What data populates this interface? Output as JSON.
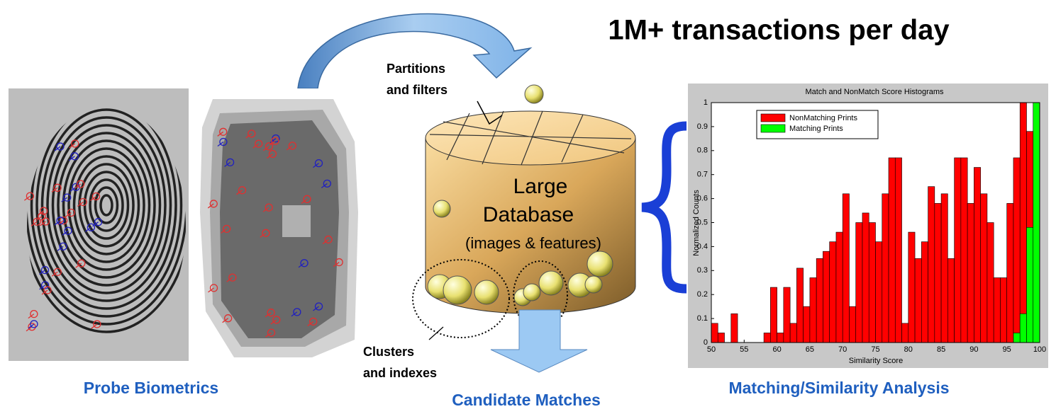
{
  "title": "1M+ transactions per day",
  "labels": {
    "partitions": [
      "Partitions",
      "and filters"
    ],
    "clusters": [
      "Clusters",
      "and indexes"
    ]
  },
  "database": [
    "Large",
    "Database",
    "(images & features)"
  ],
  "captions": {
    "probe": "Probe Biometrics",
    "candidates": "Candidate Matches",
    "analysis": "Matching/Similarity Analysis"
  },
  "chart_data": {
    "type": "histogram",
    "title": "Match and NonMatch Score Histograms",
    "x_label": "Similarity Score",
    "y_label": "Normalized Counts",
    "bins": [
      50,
      51,
      52,
      53,
      54,
      55,
      56,
      57,
      58,
      59,
      60,
      61,
      62,
      63,
      64,
      65,
      66,
      67,
      68,
      69,
      70,
      71,
      72,
      73,
      74,
      75,
      76,
      77,
      78,
      79,
      80,
      81,
      82,
      83,
      84,
      85,
      86,
      87,
      88,
      89,
      90,
      91,
      92,
      93,
      94,
      95,
      96,
      97,
      98,
      99,
      100
    ],
    "series": [
      {
        "name": "NonMatching Prints",
        "color": "#ff0000",
        "values": [
          0.08,
          0.04,
          0,
          0.12,
          0,
          0,
          0,
          0,
          0.04,
          0.23,
          0.04,
          0.23,
          0.08,
          0.31,
          0.15,
          0.27,
          0.35,
          0.38,
          0.42,
          0.46,
          0.62,
          0.15,
          0.5,
          0.54,
          0.5,
          0.42,
          0.62,
          0.77,
          0.77,
          0.08,
          0.46,
          0.35,
          0.42,
          0.65,
          0.58,
          0.62,
          0.35,
          0.77,
          0.77,
          0.58,
          0.73,
          0.62,
          0.5,
          0.27,
          0.27,
          0.58,
          0.77,
          1.0,
          0.88,
          0
        ]
      },
      {
        "name": "Matching Prints",
        "color": "#00ff00",
        "values": [
          0,
          0,
          0,
          0,
          0,
          0,
          0,
          0,
          0,
          0,
          0,
          0,
          0,
          0,
          0,
          0,
          0,
          0,
          0,
          0,
          0,
          0,
          0,
          0,
          0,
          0,
          0,
          0,
          0,
          0,
          0,
          0,
          0,
          0,
          0,
          0,
          0,
          0,
          0,
          0,
          0,
          0,
          0,
          0,
          0,
          0,
          0.04,
          0.12,
          0.48,
          1.0
        ]
      }
    ],
    "xlim": [
      50,
      100
    ],
    "ylim": [
      0,
      1
    ],
    "xticks": [
      50,
      55,
      60,
      65,
      70,
      75,
      80,
      85,
      90,
      95,
      100
    ],
    "yticks": [
      0,
      0.1,
      0.2,
      0.3,
      0.4,
      0.5,
      0.6,
      0.7,
      0.8,
      0.9,
      1
    ],
    "legend": "upper left",
    "grid": false
  }
}
